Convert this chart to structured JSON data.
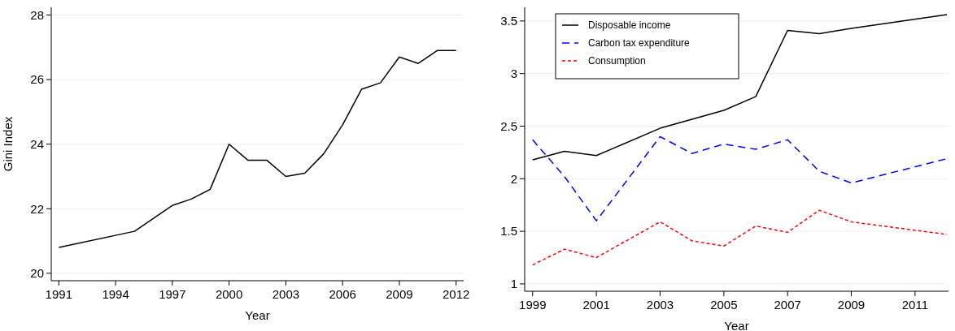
{
  "chart_data": [
    {
      "type": "line",
      "xlabel": "Year",
      "ylabel": "Gini Index",
      "grid": "y",
      "legend": false,
      "x": [
        1991,
        1995,
        1997,
        1998,
        1999,
        2000,
        2001,
        2002,
        2003,
        2004,
        2005,
        2006,
        2007,
        2008,
        2009,
        2010,
        2011,
        2012
      ],
      "series": [
        {
          "color": "#000000",
          "line_style": "solid",
          "values": [
            20.8,
            21.3,
            22.1,
            22.3,
            22.6,
            24.0,
            23.5,
            23.5,
            23.0,
            23.1,
            23.7,
            24.6,
            25.7,
            25.9,
            26.7,
            26.5,
            26.9,
            26.9
          ]
        }
      ],
      "xlim": [
        1990.6,
        2012.4
      ],
      "xticks": [
        1991,
        1994,
        1997,
        2000,
        2003,
        2006,
        2009,
        2012
      ],
      "ylim": [
        19.77,
        28.24
      ],
      "yticks": [
        20,
        22,
        24,
        26,
        28
      ]
    },
    {
      "type": "line",
      "xlabel": "Year",
      "grid": "y",
      "legend": "top left",
      "series": [
        {
          "name": "Disposable income",
          "color": "#000000",
          "line_style": "solid",
          "x": [
            1999,
            2000,
            2001,
            2003,
            2005,
            2006,
            2007,
            2008,
            2009,
            2012
          ],
          "values": [
            2.18,
            2.26,
            2.22,
            2.48,
            2.65,
            2.78,
            3.41,
            3.38,
            3.43,
            3.56
          ]
        },
        {
          "name": "Carbon tax expenditure",
          "color": "#0000ff",
          "line_style": "dashed",
          "x": [
            1999,
            2000,
            2001,
            2003,
            2004,
            2005,
            2006,
            2007,
            2008,
            2009,
            2012
          ],
          "values": [
            2.37,
            2.02,
            1.6,
            2.4,
            2.24,
            2.33,
            2.28,
            2.37,
            2.07,
            1.96,
            2.19
          ]
        },
        {
          "name": "Consumption",
          "color": "#ff0000",
          "line_style": "dotted",
          "x": [
            1999,
            2000,
            2001,
            2003,
            2004,
            2005,
            2006,
            2007,
            2008,
            2009,
            2012
          ],
          "values": [
            1.18,
            1.33,
            1.25,
            1.59,
            1.41,
            1.36,
            1.55,
            1.49,
            1.7,
            1.59,
            1.47
          ]
        }
      ],
      "xlim": [
        1998.75,
        2012.05
      ],
      "xticks": [
        1999,
        2001,
        2003,
        2005,
        2007,
        2009,
        2011
      ],
      "ylim": [
        0.93,
        3.63
      ],
      "yticks": [
        1,
        1.5,
        2,
        2.5,
        3,
        3.5
      ]
    }
  ]
}
